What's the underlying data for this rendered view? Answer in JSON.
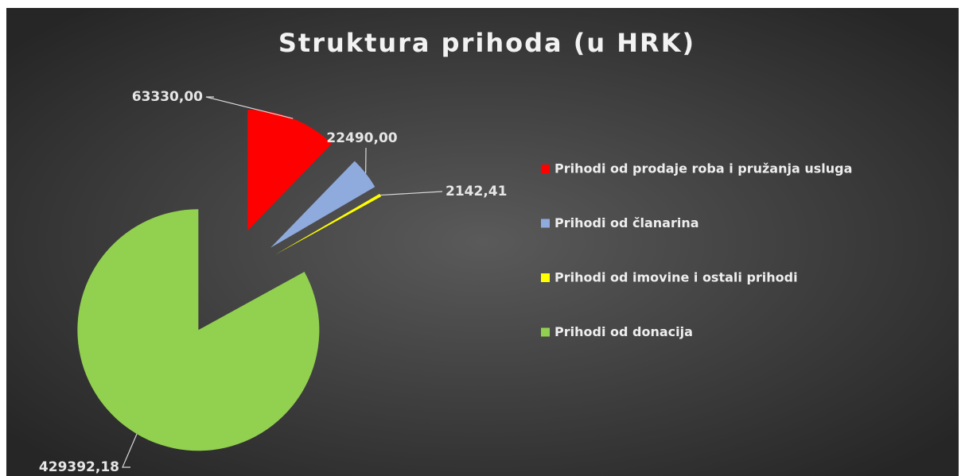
{
  "chart_data": {
    "type": "pie",
    "title": "Struktura prihoda (u HRK)",
    "categories": [
      "Prihodi od prodaje roba i pružanja usluga",
      "Prihodi od članarina",
      "Prihodi od imovine i ostali prihodi",
      "Prihodi od donacija"
    ],
    "values": [
      63330,
      22490,
      2142.41,
      429392.18
    ],
    "value_labels": [
      "63330,00",
      "22490,00",
      "2142,41",
      "429392,18"
    ],
    "colors": [
      "#ff0000",
      "#8faadc",
      "#ffff00",
      "#92d050"
    ],
    "legend": "right"
  }
}
